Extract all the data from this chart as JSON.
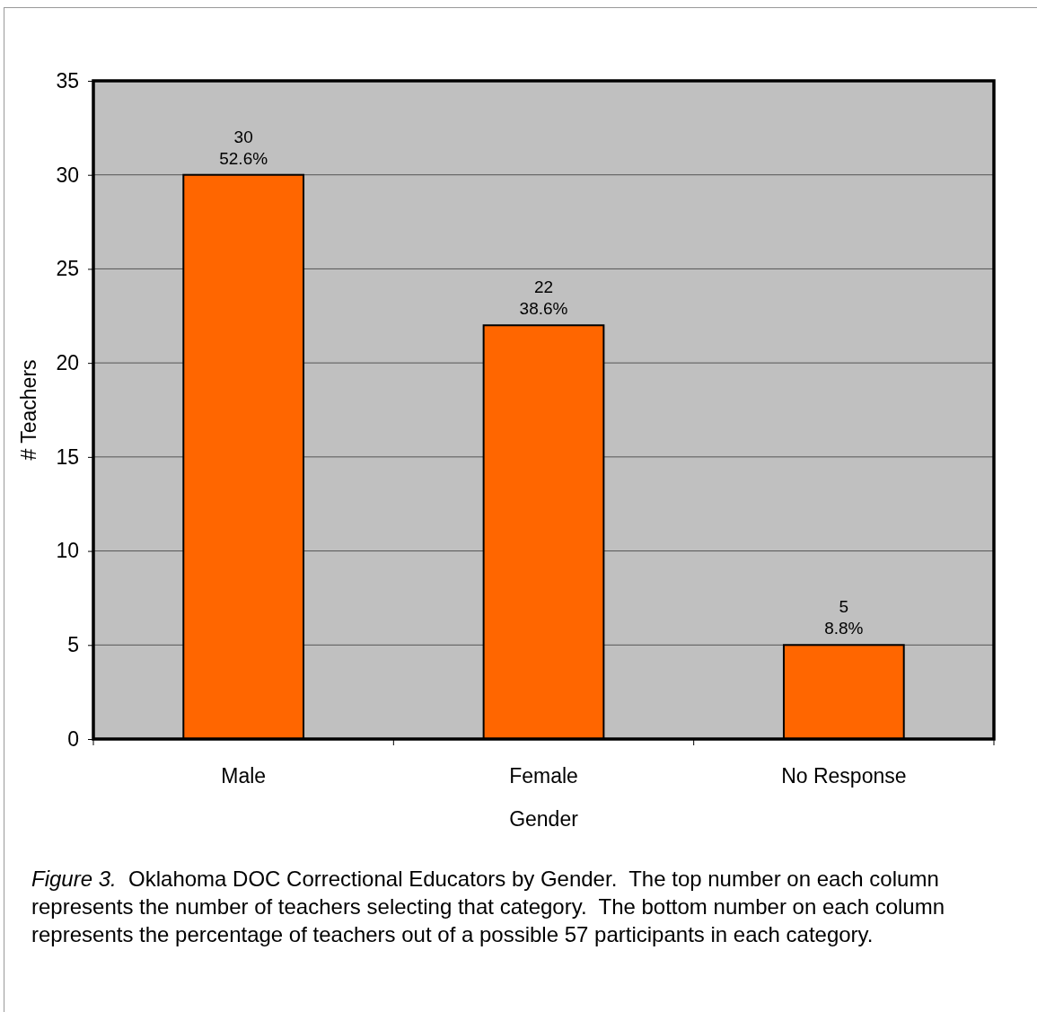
{
  "chart_data": {
    "type": "bar",
    "categories": [
      "Male",
      "Female",
      "No Response"
    ],
    "values": [
      30,
      22,
      5
    ],
    "value_labels": [
      "30\n52.6%",
      "22\n38.6%",
      "5\n8.8%"
    ],
    "color": "#ff6600",
    "xlabel": "Gender",
    "ylabel": "# Teachers",
    "ylim": [
      0,
      35
    ],
    "yticks": [
      0,
      5,
      10,
      15,
      20,
      25,
      30,
      35
    ],
    "grid": "y",
    "annotations": [
      "Figure 3.",
      "Oklahoma DOC Correctional Educators by Gender.  The top number on each column represents the number of teachers selecting that category.  The bottom number on each column represents the percentage of teachers out of a possible 57 participants in each category."
    ]
  }
}
